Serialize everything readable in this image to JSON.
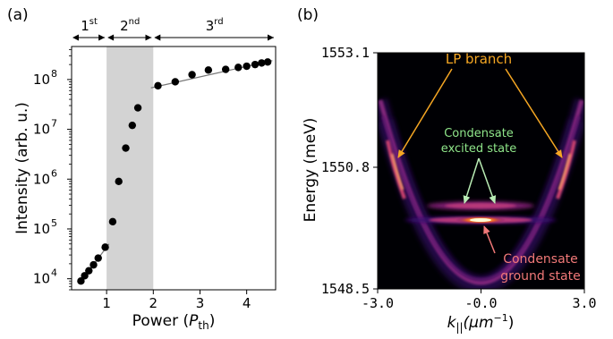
{
  "panels": {
    "a": {
      "label": "(a)"
    },
    "b": {
      "label": "(b)"
    }
  },
  "chart_data": [
    {
      "type": "scatter",
      "panel": "(a)",
      "xlabel_main": "Power (",
      "xlabel_sym": "P",
      "xlabel_sub": "th",
      "xlabel_close": ")",
      "ylabel": "Intensity (arb. u.)",
      "xlim": [
        0.25,
        4.62
      ],
      "ylim": [
        6000,
        460000000
      ],
      "yscale": "log",
      "xticks": [
        1,
        2,
        3,
        4
      ],
      "yticks": [
        {
          "value": 10000,
          "base": "10",
          "exp": "4"
        },
        {
          "value": 100000,
          "base": "10",
          "exp": "5"
        },
        {
          "value": 1000000,
          "base": "10",
          "exp": "6"
        },
        {
          "value": 10000000,
          "base": "10",
          "exp": "7"
        },
        {
          "value": 100000000,
          "base": "10",
          "exp": "8"
        }
      ],
      "shaded_region": [
        1.0,
        2.0
      ],
      "regimes": [
        {
          "text": "1",
          "sup": "st",
          "range": [
            0.25,
            1.0
          ]
        },
        {
          "text": "2",
          "sup": "nd",
          "range": [
            1.0,
            2.0
          ]
        },
        {
          "text": "3",
          "sup": "rd",
          "range": [
            2.0,
            4.62
          ]
        }
      ],
      "points": [
        {
          "x": 0.45,
          "y": 9000
        },
        {
          "x": 0.53,
          "y": 11500
        },
        {
          "x": 0.62,
          "y": 14500
        },
        {
          "x": 0.72,
          "y": 19000
        },
        {
          "x": 0.82,
          "y": 26000
        },
        {
          "x": 0.97,
          "y": 43000
        },
        {
          "x": 1.13,
          "y": 140000
        },
        {
          "x": 1.26,
          "y": 900000
        },
        {
          "x": 1.41,
          "y": 4200000
        },
        {
          "x": 1.55,
          "y": 12000000
        },
        {
          "x": 1.67,
          "y": 27000000
        },
        {
          "x": 2.1,
          "y": 75000000
        },
        {
          "x": 2.47,
          "y": 90000000
        },
        {
          "x": 2.83,
          "y": 125000000
        },
        {
          "x": 3.18,
          "y": 155000000
        },
        {
          "x": 3.55,
          "y": 160000000
        },
        {
          "x": 3.82,
          "y": 175000000
        },
        {
          "x": 4.0,
          "y": 185000000
        },
        {
          "x": 4.18,
          "y": 200000000
        },
        {
          "x": 4.32,
          "y": 215000000
        },
        {
          "x": 4.45,
          "y": 225000000
        }
      ],
      "fit_lines": [
        {
          "x": [
            0.42,
            1.05
          ],
          "y": [
            8000,
            50000
          ]
        },
        {
          "x": [
            1.95,
            4.55
          ],
          "y": [
            68000000,
            240000000
          ]
        }
      ]
    },
    {
      "type": "heatmap",
      "panel": "(b)",
      "xlabel_sym": "k",
      "xlabel_sub": "||",
      "xlabel_unit": "(μm",
      "xlabel_unit_exp": "−1",
      "xlabel_unit_close": ")",
      "ylabel": "Energy (meV)",
      "xlim": [
        -3.0,
        3.0
      ],
      "ylim": [
        1548.5,
        1553.1
      ],
      "xticks": [
        "-3.0",
        "-0.0",
        "3.0"
      ],
      "yticks": [
        "1548.5",
        "1550.8",
        "1553.1"
      ],
      "colormap": "inferno",
      "annotations": [
        {
          "text": "LP branch",
          "color": "#f5a623"
        },
        {
          "text": "Condensate",
          "text2": "excited state",
          "color": "#8fe68a"
        },
        {
          "text": "Condensate",
          "text2": "ground state",
          "color": "#f07878"
        }
      ]
    }
  ]
}
